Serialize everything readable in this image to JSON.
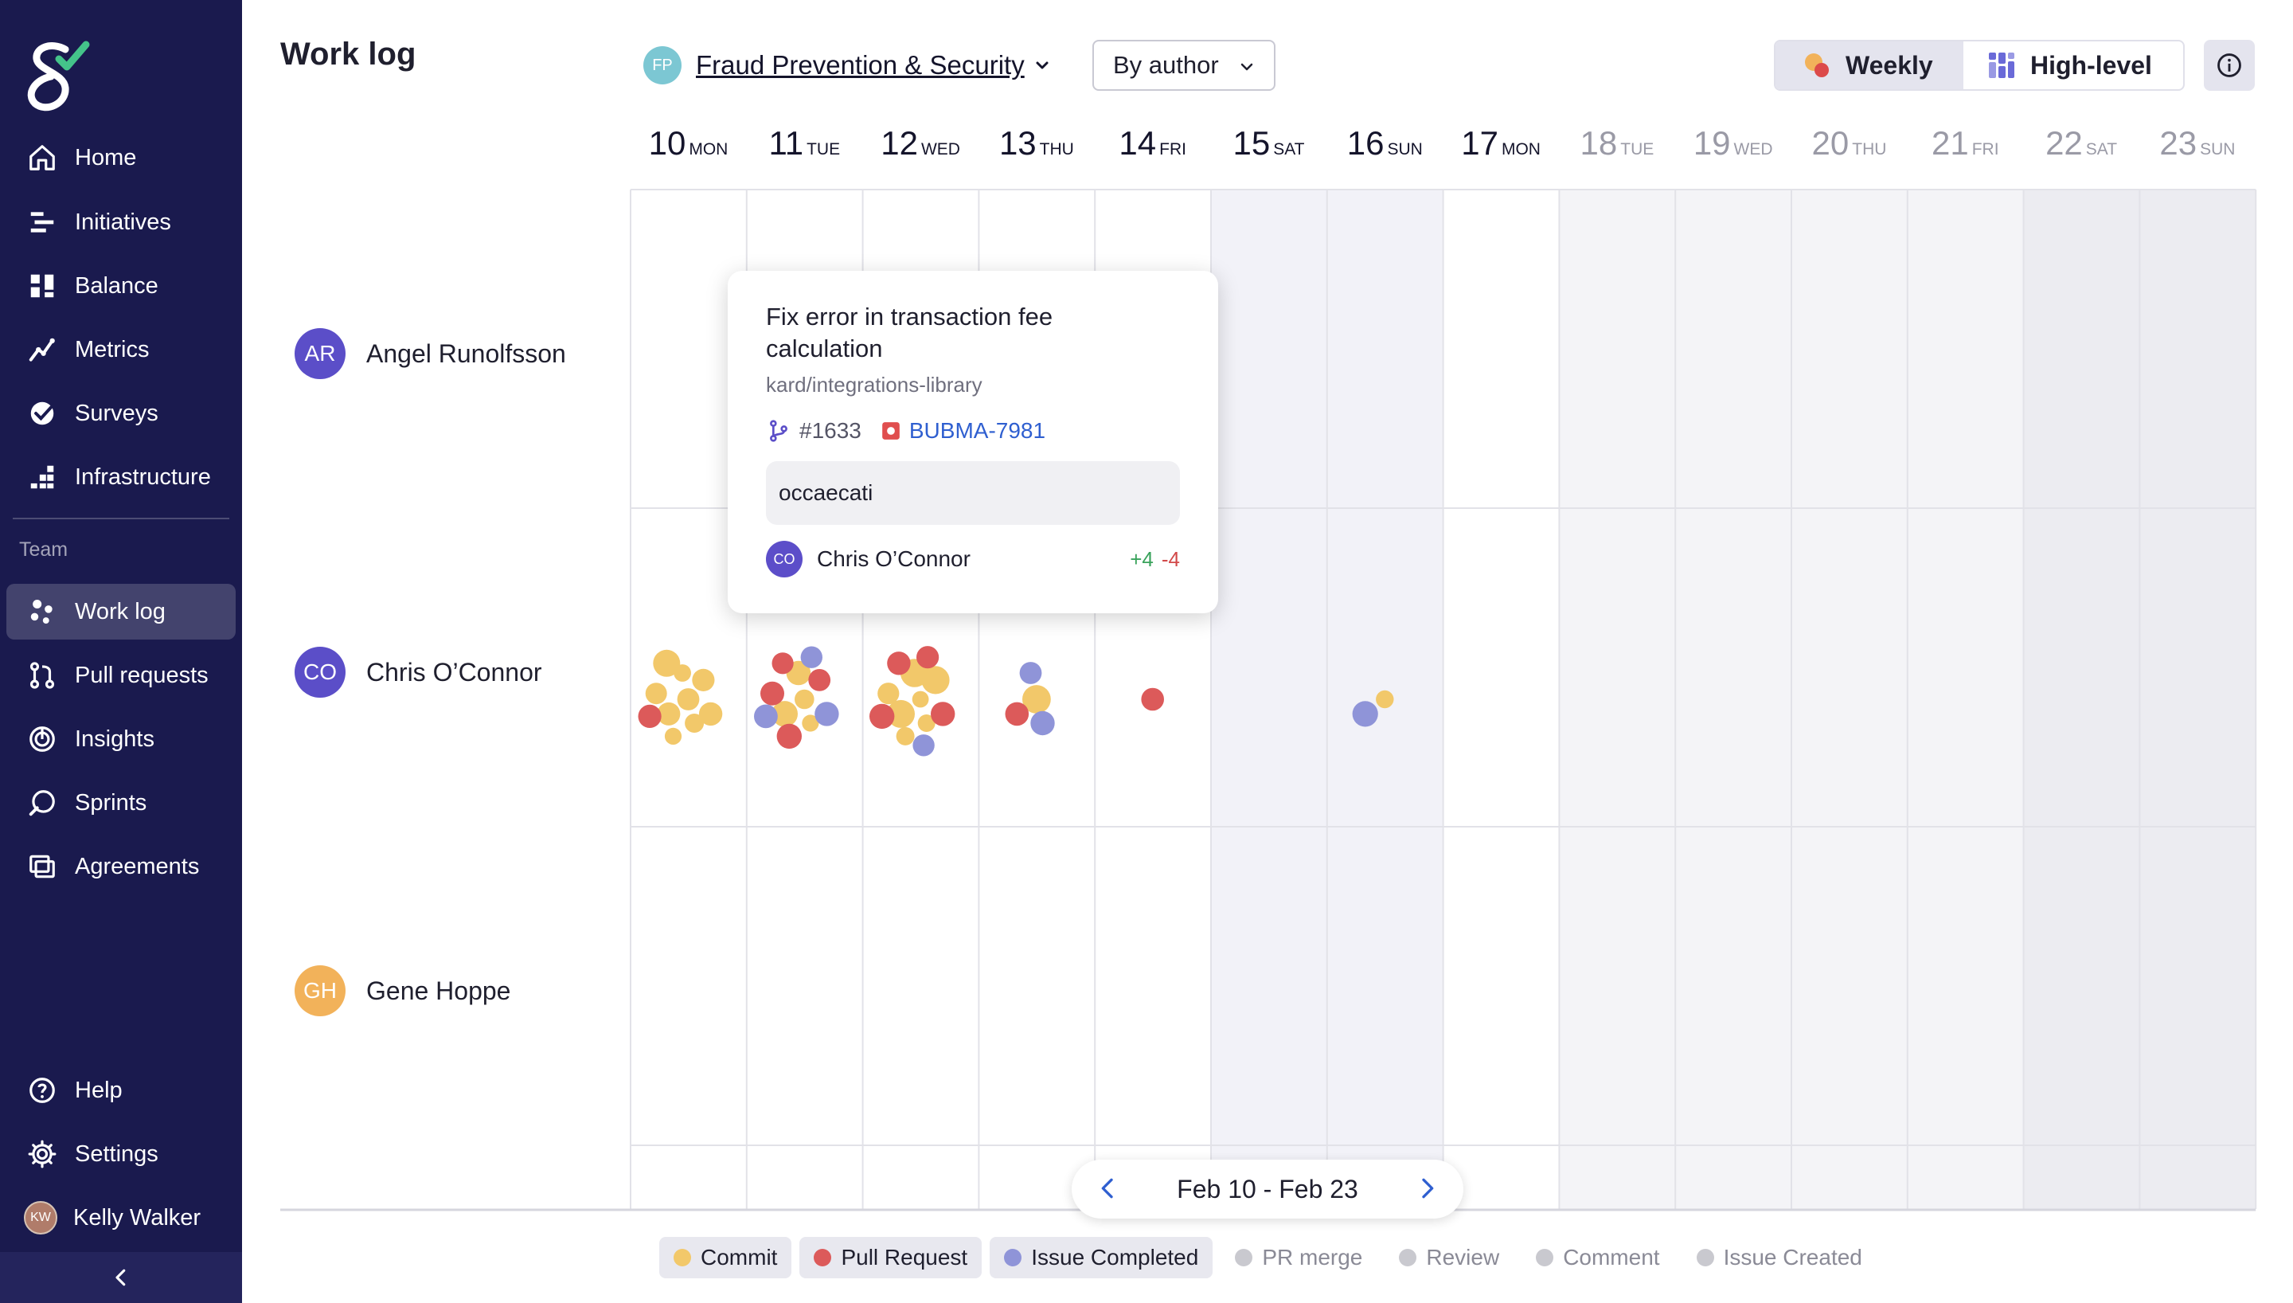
{
  "sidebar": {
    "nav": [
      {
        "label": "Home",
        "icon": "home-icon"
      },
      {
        "label": "Initiatives",
        "icon": "initiatives-icon"
      },
      {
        "label": "Balance",
        "icon": "balance-icon"
      },
      {
        "label": "Metrics",
        "icon": "metrics-icon"
      },
      {
        "label": "Surveys",
        "icon": "surveys-icon"
      },
      {
        "label": "Infrastructure",
        "icon": "infrastructure-icon"
      }
    ],
    "section_label": "Team",
    "team_nav": [
      {
        "label": "Work log",
        "icon": "worklog-icon",
        "active": true
      },
      {
        "label": "Pull requests",
        "icon": "pull-requests-icon"
      },
      {
        "label": "Insights",
        "icon": "insights-icon"
      },
      {
        "label": "Sprints",
        "icon": "sprints-icon"
      },
      {
        "label": "Agreements",
        "icon": "agreements-icon"
      }
    ],
    "bottom_nav": [
      {
        "label": "Help",
        "icon": "help-icon"
      },
      {
        "label": "Settings",
        "icon": "settings-icon"
      }
    ],
    "user": {
      "initials": "KW",
      "name": "Kelly Walker"
    }
  },
  "header": {
    "title": "Work log",
    "team": {
      "initials": "FP",
      "name": "Fraud Prevention & Security"
    },
    "group_by": "By author",
    "views": {
      "weekly": "Weekly",
      "high_level": "High-level"
    }
  },
  "days": [
    {
      "num": "10",
      "dow": "MON",
      "future": false
    },
    {
      "num": "11",
      "dow": "TUE",
      "future": false
    },
    {
      "num": "12",
      "dow": "WED",
      "future": false
    },
    {
      "num": "13",
      "dow": "THU",
      "future": false
    },
    {
      "num": "14",
      "dow": "FRI",
      "future": false
    },
    {
      "num": "15",
      "dow": "SAT",
      "future": false
    },
    {
      "num": "16",
      "dow": "SUN",
      "future": false
    },
    {
      "num": "17",
      "dow": "MON",
      "future": false
    },
    {
      "num": "18",
      "dow": "TUE",
      "future": true
    },
    {
      "num": "19",
      "dow": "WED",
      "future": true
    },
    {
      "num": "20",
      "dow": "THU",
      "future": true
    },
    {
      "num": "21",
      "dow": "FRI",
      "future": true
    },
    {
      "num": "22",
      "dow": "SAT",
      "future": true
    },
    {
      "num": "23",
      "dow": "SUN",
      "future": true
    }
  ],
  "people": [
    {
      "initials": "AR",
      "name": "Angel Runolfsson",
      "color": "#5b4ec8"
    },
    {
      "initials": "CO",
      "name": "Chris O’Connor",
      "color": "#5b4ec8"
    },
    {
      "initials": "GH",
      "name": "Gene Hoppe",
      "color": "#f2b25a"
    }
  ],
  "tooltip": {
    "title": "Fix error in transaction fee calculation",
    "repo": "kard/integrations-library",
    "pr": "#1633",
    "issue": "BUBMA-7981",
    "message": "occaecati",
    "author_initials": "CO",
    "author": "Chris O’Connor",
    "additions": "+4",
    "deletions": "-4"
  },
  "pager": {
    "range": "Feb 10 - Feb 23"
  },
  "legend": [
    {
      "label": "Commit",
      "color": "#f2c86a",
      "on": true
    },
    {
      "label": "Pull Request",
      "color": "#dc5a5a",
      "on": true
    },
    {
      "label": "Issue Completed",
      "color": "#8f94d8",
      "on": true
    },
    {
      "label": "PR merge",
      "color": "#c9c9cf",
      "on": false
    },
    {
      "label": "Review",
      "color": "#c9c9cf",
      "on": false
    },
    {
      "label": "Comment",
      "color": "#c9c9cf",
      "on": false
    },
    {
      "label": "Issue Created",
      "color": "#c9c9cf",
      "on": false
    }
  ],
  "colors": {
    "sidebar_bg": "#1a1a4e",
    "commit": "#f2c86a",
    "pull_request": "#dc5a5a",
    "issue_completed": "#8f94d8"
  },
  "activity_events": [
    {
      "person": "Chris O’Connor",
      "day": "10",
      "type": "commit",
      "count": 9
    },
    {
      "person": "Chris O’Connor",
      "day": "10",
      "type": "pull_request",
      "count": 1
    },
    {
      "person": "Chris O’Connor",
      "day": "11",
      "type": "commit",
      "count": 4
    },
    {
      "person": "Chris O’Connor",
      "day": "11",
      "type": "pull_request",
      "count": 4
    },
    {
      "person": "Chris O’Connor",
      "day": "11",
      "type": "issue_completed",
      "count": 3
    },
    {
      "person": "Chris O’Connor",
      "day": "12",
      "type": "commit",
      "count": 7
    },
    {
      "person": "Chris O’Connor",
      "day": "12",
      "type": "pull_request",
      "count": 4
    },
    {
      "person": "Chris O’Connor",
      "day": "12",
      "type": "issue_completed",
      "count": 1
    },
    {
      "person": "Chris O’Connor",
      "day": "13",
      "type": "commit",
      "count": 1
    },
    {
      "person": "Chris O’Connor",
      "day": "13",
      "type": "pull_request",
      "count": 1
    },
    {
      "person": "Chris O’Connor",
      "day": "13",
      "type": "issue_completed",
      "count": 2
    },
    {
      "person": "Chris O’Connor",
      "day": "14",
      "type": "pull_request",
      "count": 1
    },
    {
      "person": "Chris O’Connor",
      "day": "16",
      "type": "commit",
      "count": 1
    },
    {
      "person": "Chris O’Connor",
      "day": "16",
      "type": "issue_completed",
      "count": 1
    }
  ]
}
